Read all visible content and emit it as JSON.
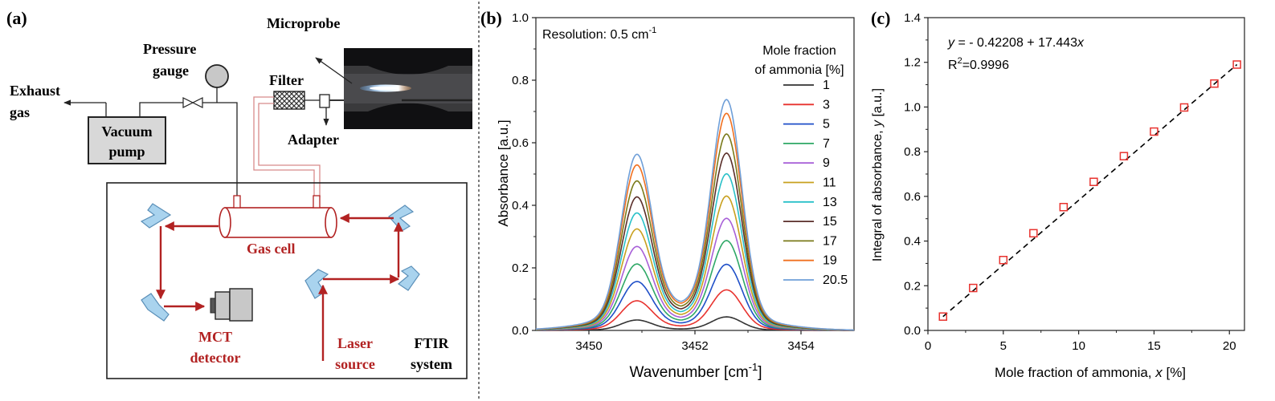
{
  "panel_a": {
    "label": "(a)",
    "exhaust_line1": "Exhaust",
    "exhaust_line2": "gas",
    "vacuum_line1": "Vacuum",
    "vacuum_line2": "pump",
    "pressure_line1": "Pressure",
    "pressure_line2": "gauge",
    "filter": "Filter",
    "microprobe": "Microprobe",
    "adapter": "Adapter",
    "gas_cell": "Gas cell",
    "mct_line1": "MCT",
    "mct_line2": "detector",
    "laser_line1": "Laser",
    "laser_line2": "source",
    "ftir_line1": "FTIR",
    "ftir_line2": "system",
    "colors": {
      "beam": "#b22222",
      "mirror": "#a9d3ee",
      "detector": "#c8c8c8",
      "pump": "#d8d8d8"
    }
  },
  "panel_b": {
    "label": "(b)",
    "resolution_text": "Resolution: 0.5 cm",
    "resolution_sup": "-1",
    "legend_title_line1": "Mole fraction",
    "legend_title_line2": "of ammonia [%]",
    "xlabel_text": "Wavenumber [cm",
    "xlabel_sup": "-1",
    "xlabel_end": "]",
    "ylabel": "Absorbance [a.u.]",
    "xticks": [
      "3450",
      "3452",
      "3454"
    ],
    "yticks": [
      "0.0",
      "0.2",
      "0.4",
      "0.6",
      "0.8",
      "1.0"
    ]
  },
  "panel_c": {
    "label": "(c)",
    "eq_y": "y",
    "eq_mid": " = - 0.42208 + 17.443",
    "eq_x": "x",
    "r2_base": "R",
    "r2_sup": "2",
    "r2_val": "=0.9996",
    "xlabel_text": "Mole fraction of ammonia, ",
    "xlabel_var": "x",
    "xlabel_end": " [%]",
    "ylabel_text": "Integral of absorbance, ",
    "ylabel_var": "y",
    "ylabel_end": " [a.u.]",
    "xticks": [
      "0",
      "5",
      "10",
      "15",
      "20"
    ],
    "yticks": [
      "0.0",
      "0.2",
      "0.4",
      "0.6",
      "0.8",
      "1.0",
      "1.2",
      "1.4"
    ]
  },
  "chart_data": [
    {
      "type": "line",
      "xlabel": "Wavenumber [cm-1]",
      "ylabel": "Absorbance [a.u.]",
      "xlim": [
        3449,
        3455
      ],
      "ylim": [
        0,
        1.0
      ],
      "legend_title": "Mole fraction of ammonia [%]",
      "legend_placement": "right",
      "peaks_x": [
        3450.9,
        3452.6
      ],
      "series": [
        {
          "name": "1",
          "color": "#333333",
          "peak1": 0.03,
          "peak2": 0.04,
          "valley": 0.008
        },
        {
          "name": "3",
          "color": "#e8332f",
          "peak1": 0.085,
          "peak2": 0.12,
          "valley": 0.024
        },
        {
          "name": "5",
          "color": "#1f4fc8",
          "peak1": 0.14,
          "peak2": 0.195,
          "valley": 0.04
        },
        {
          "name": "7",
          "color": "#2ea866",
          "peak1": 0.19,
          "peak2": 0.265,
          "valley": 0.055
        },
        {
          "name": "9",
          "color": "#a860d8",
          "peak1": 0.24,
          "peak2": 0.33,
          "valley": 0.07
        },
        {
          "name": "11",
          "color": "#c8a01e",
          "peak1": 0.29,
          "peak2": 0.395,
          "valley": 0.085
        },
        {
          "name": "13",
          "color": "#29c0c8",
          "peak1": 0.335,
          "peak2": 0.46,
          "valley": 0.1
        },
        {
          "name": "15",
          "color": "#5a2f2a",
          "peak1": 0.38,
          "peak2": 0.52,
          "valley": 0.115
        },
        {
          "name": "17",
          "color": "#7a7a1a",
          "peak1": 0.425,
          "peak2": 0.575,
          "valley": 0.13
        },
        {
          "name": "19",
          "color": "#f07020",
          "peak1": 0.47,
          "peak2": 0.635,
          "valley": 0.145
        },
        {
          "name": "20.5",
          "color": "#6f9fd8",
          "peak1": 0.5,
          "peak2": 0.675,
          "valley": 0.155
        }
      ]
    },
    {
      "type": "scatter",
      "xlabel": "Mole fraction of ammonia, x [%]",
      "ylabel": "Integral of absorbance, y [a.u.]",
      "xlim": [
        0,
        21
      ],
      "ylim": [
        0,
        1.4
      ],
      "marker": "open-square",
      "marker_color": "#e8332f",
      "fit": {
        "intercept": -0.42208,
        "slope": 17.443,
        "r2": 0.9996,
        "style": "dashed",
        "color": "#000000"
      },
      "x": [
        1,
        3,
        5,
        7,
        9,
        11,
        13,
        15,
        17,
        19,
        20.5
      ],
      "y": [
        0.062,
        0.19,
        0.315,
        0.435,
        0.552,
        0.665,
        0.78,
        0.89,
        0.998,
        1.105,
        1.19
      ]
    }
  ]
}
